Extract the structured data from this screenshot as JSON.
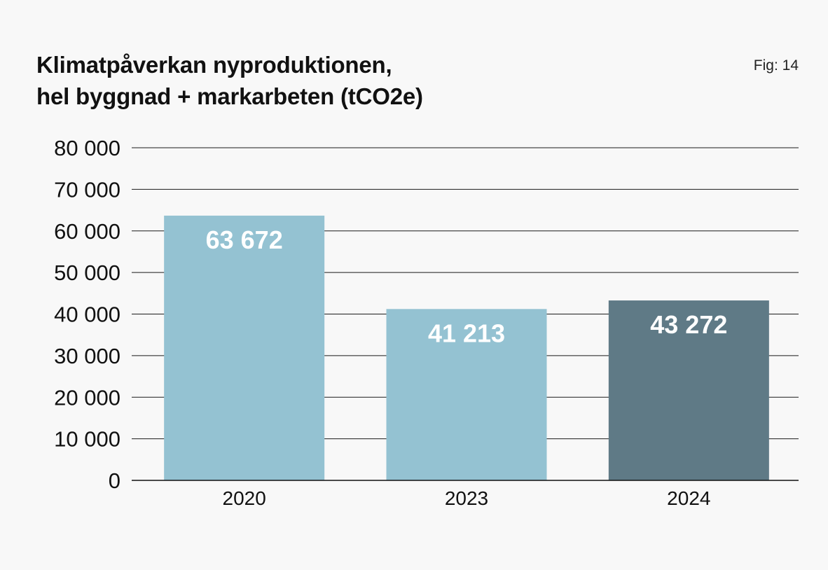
{
  "header": {
    "title_line1": "Klimatpåverkan nyproduktionen,",
    "title_line2": "hel byggnad + markarbeten (tCO2e)",
    "fig_label": "Fig: 14"
  },
  "chart_data": {
    "type": "bar",
    "title": "Klimatpåverkan nyproduktionen, hel byggnad + markarbeten (tCO2e)",
    "xlabel": "",
    "ylabel": "",
    "categories": [
      "2020",
      "2023",
      "2024"
    ],
    "values": [
      63672,
      41213,
      43272
    ],
    "data_labels": [
      "63 672",
      "41 213",
      "43 272"
    ],
    "bar_colors": [
      "#94c2d2",
      "#94c2d2",
      "#5f7a86"
    ],
    "ylim": [
      0,
      80000
    ],
    "yticks": [
      0,
      10000,
      20000,
      30000,
      40000,
      50000,
      60000,
      70000,
      80000
    ],
    "ytick_labels": [
      "0",
      "10 000",
      "20 000",
      "30 000",
      "40 000",
      "50 000",
      "60 000",
      "70 000",
      "80 000"
    ],
    "grid": true,
    "legend": "none"
  }
}
